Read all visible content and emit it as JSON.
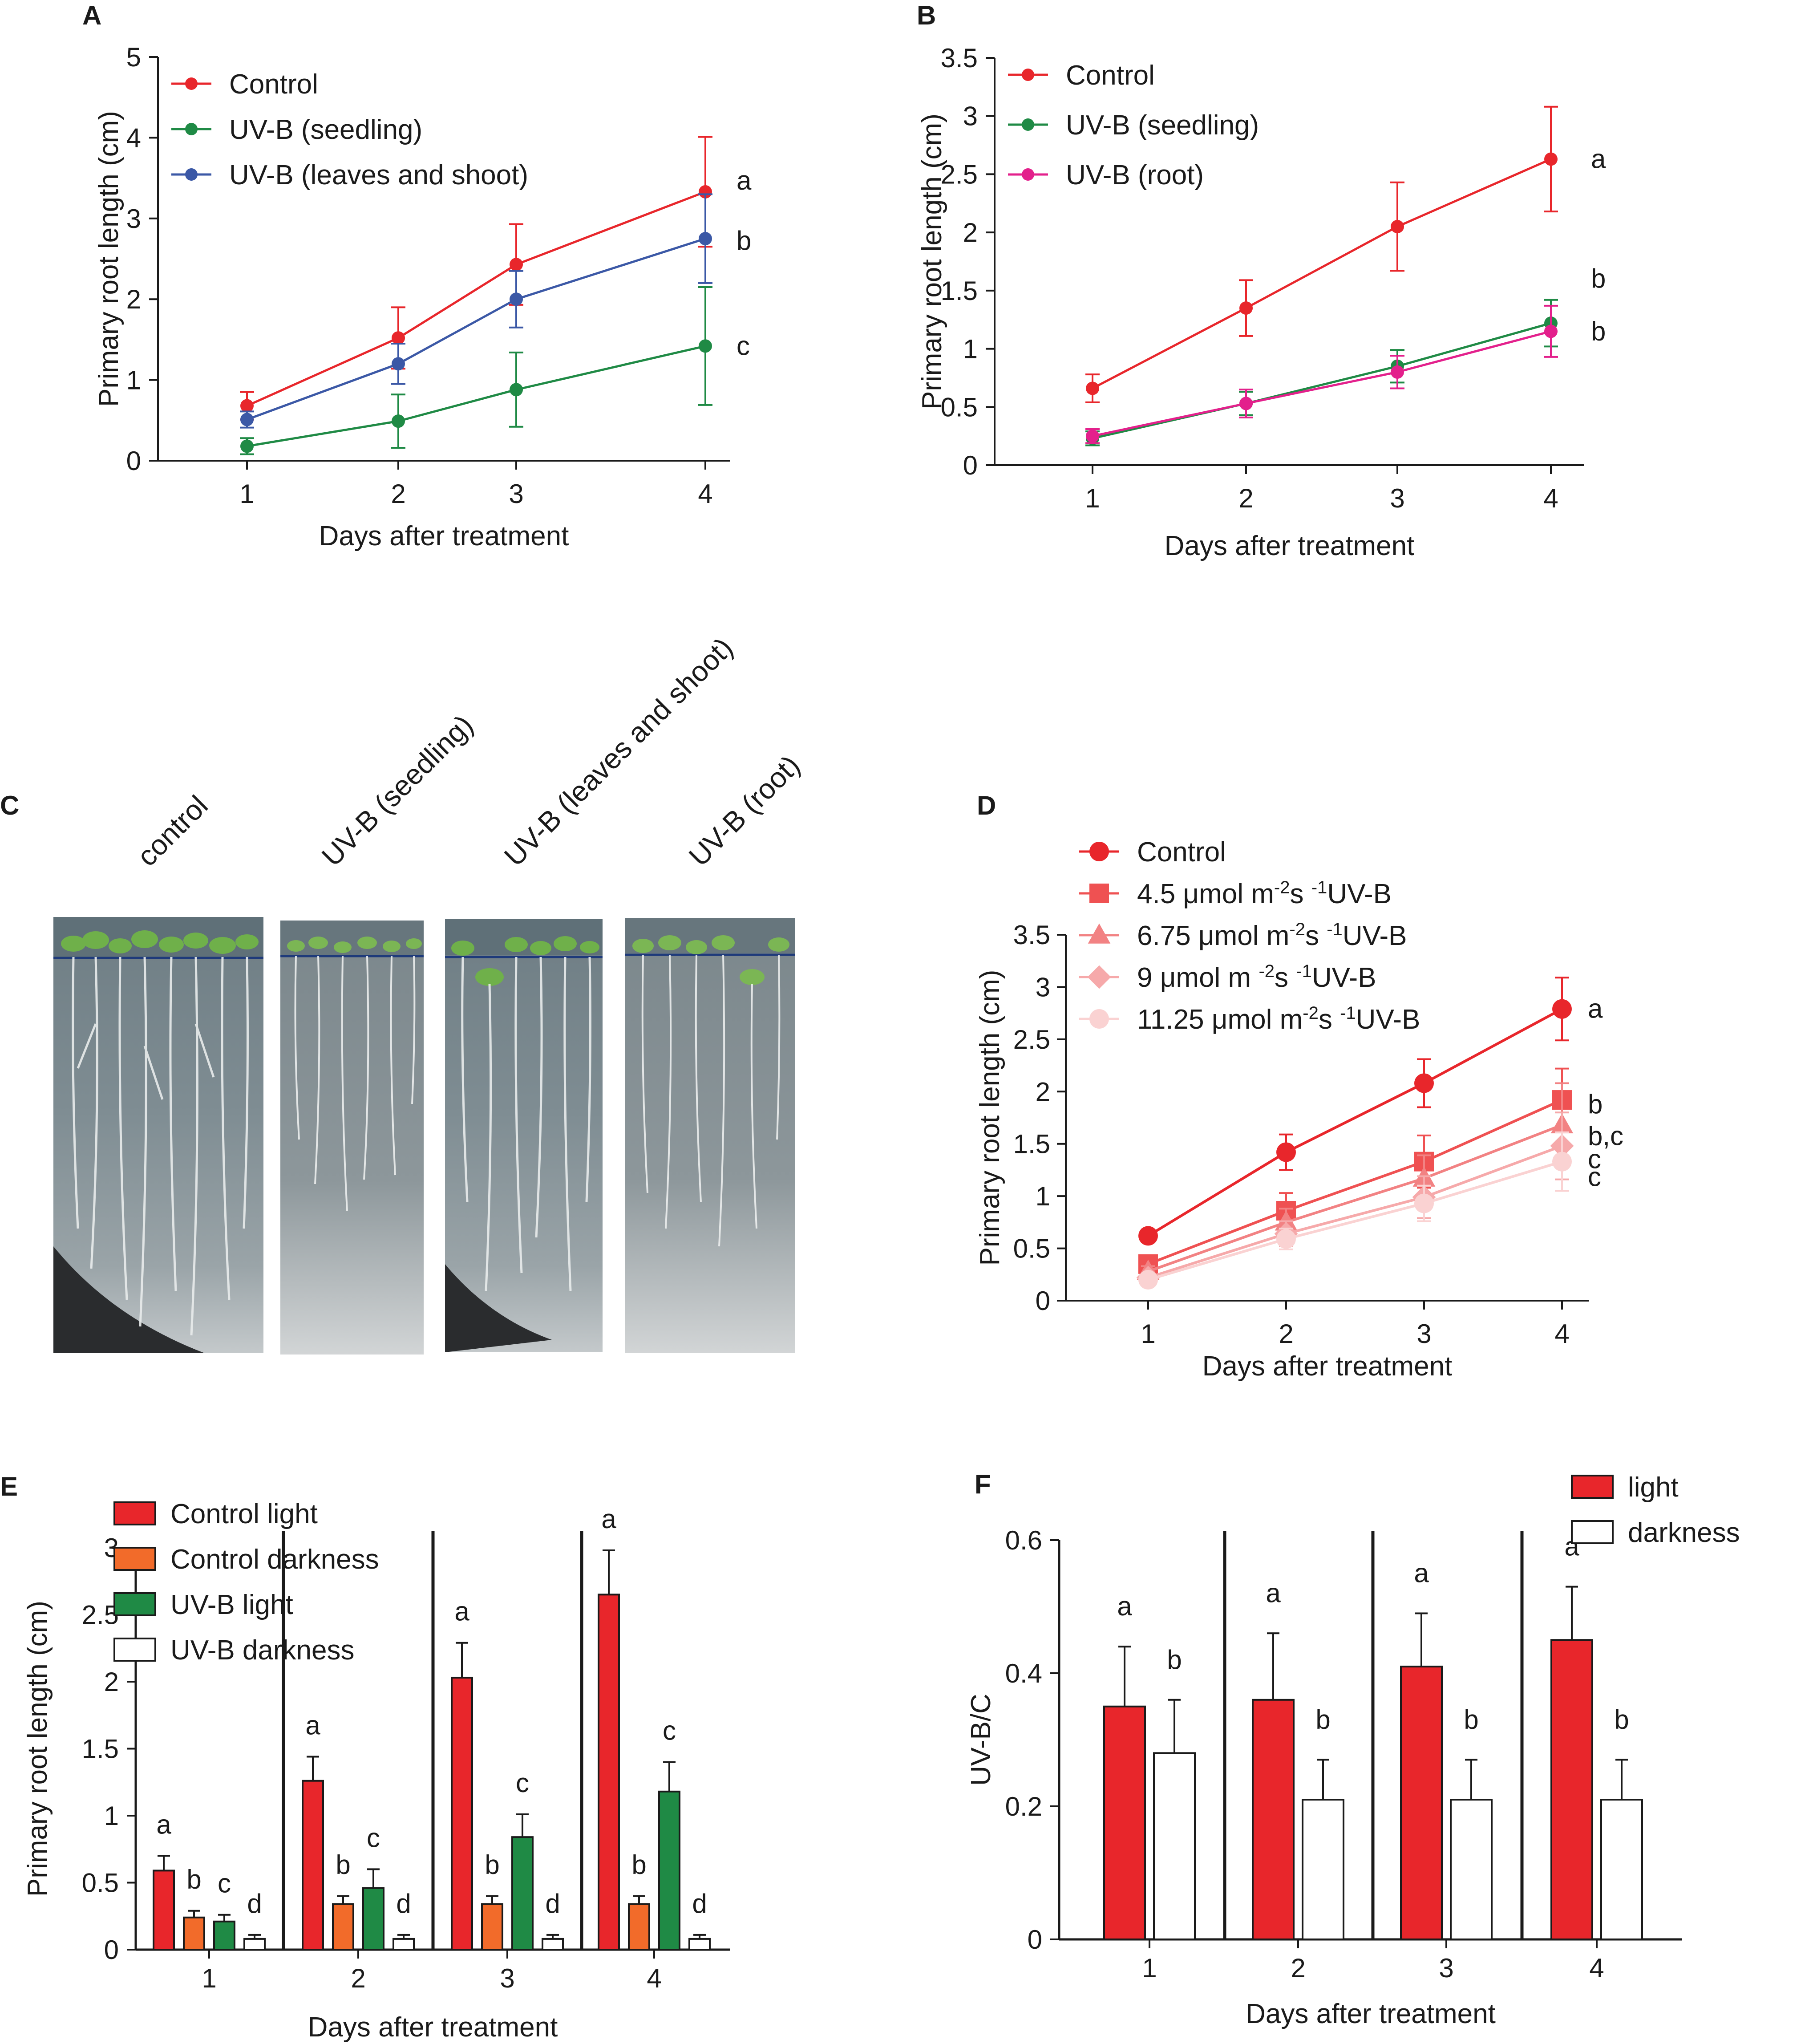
{
  "figure": {
    "panels": {
      "A": {
        "label": "A"
      },
      "B": {
        "label": "B"
      },
      "C": {
        "label": "C"
      },
      "D": {
        "label": "D"
      },
      "E": {
        "label": "E"
      },
      "F": {
        "label": "F"
      }
    }
  },
  "photo": {
    "captions": [
      "control",
      "UV-B (seedling)",
      "UV-B (leaves and shoot)",
      "UV-B (root)"
    ]
  },
  "chart_data": [
    {
      "id": "A",
      "type": "line",
      "xlabel": "Days after treatment",
      "ylabel": "Primary root length (cm)",
      "x": [
        1,
        2,
        3,
        4
      ],
      "ylim": [
        0,
        5
      ],
      "yticks": [
        "0",
        "1",
        "2",
        "3",
        "4",
        "5"
      ],
      "xticks": [
        "1",
        "2",
        "3",
        "4"
      ],
      "legend_position": "top-left",
      "series": [
        {
          "name": "Control",
          "color": "#e8262b",
          "values": [
            0.68,
            1.52,
            2.43,
            3.33
          ],
          "err": [
            0.17,
            0.38,
            0.5,
            0.68
          ],
          "letter": "a"
        },
        {
          "name": "UV-B (seedling)",
          "color": "#1f8a45",
          "values": [
            0.18,
            0.49,
            0.88,
            1.42
          ],
          "err": [
            0.1,
            0.33,
            0.46,
            0.73
          ],
          "letter": "c"
        },
        {
          "name": "UV-B (leaves and shoot)",
          "color": "#3b58a6",
          "values": [
            0.51,
            1.2,
            2.0,
            2.75
          ],
          "err": [
            0.1,
            0.25,
            0.35,
            0.55
          ],
          "letter": "b"
        }
      ]
    },
    {
      "id": "B",
      "type": "line",
      "xlabel": "Days after treatment",
      "ylabel": "Primary root length (cm)",
      "x": [
        1,
        2,
        3,
        4
      ],
      "ylim": [
        0,
        3.5
      ],
      "yticks": [
        "0",
        "0.5",
        "1",
        "1.5",
        "2",
        "2.5",
        "3",
        "3.5"
      ],
      "xticks": [
        "1",
        "2",
        "3",
        "4"
      ],
      "legend_position": "top-left",
      "series": [
        {
          "name": "Control",
          "color": "#e8262b",
          "values": [
            0.66,
            1.35,
            2.05,
            2.63
          ],
          "err": [
            0.12,
            0.24,
            0.38,
            0.45
          ],
          "letter": "a"
        },
        {
          "name": "UV-B (seedling)",
          "color": "#1f8a45",
          "values": [
            0.23,
            0.53,
            0.85,
            1.22
          ],
          "err": [
            0.06,
            0.1,
            0.14,
            0.2
          ],
          "letter": "b"
        },
        {
          "name": "UV-B (root)",
          "color": "#e3208c",
          "values": [
            0.25,
            0.53,
            0.8,
            1.15
          ],
          "err": [
            0.06,
            0.12,
            0.14,
            0.22
          ],
          "letter": "b"
        }
      ]
    },
    {
      "id": "D",
      "type": "line",
      "xlabel": "Days after treatment",
      "ylabel": "Primary root length (cm)",
      "x": [
        1,
        2,
        3,
        4
      ],
      "ylim": [
        0,
        3.5
      ],
      "yticks": [
        "0",
        "0.5",
        "1",
        "1.5",
        "2",
        "2.5",
        "3",
        "3.5"
      ],
      "xticks": [
        "1",
        "2",
        "3",
        "4"
      ],
      "legend_position": "top-left",
      "series": [
        {
          "name": "Control",
          "marker": "circle",
          "color": "#e8262b",
          "values": [
            0.62,
            1.42,
            2.08,
            2.79
          ],
          "err": [
            0.06,
            0.17,
            0.23,
            0.3
          ],
          "letter": "a"
        },
        {
          "name": "4.5 μmol m-2s-1UV-B",
          "legend_parts": [
            "4.5 μmol m",
            "-2",
            "s ",
            "-1",
            "UV-B"
          ],
          "marker": "square",
          "color": "#ef5152",
          "values": [
            0.35,
            0.86,
            1.33,
            1.92
          ],
          "err": [
            0.05,
            0.17,
            0.25,
            0.3
          ],
          "letter": "b"
        },
        {
          "name": "6.75 μmol m-2s-1UV-B",
          "legend_parts": [
            "6.75 μmol m",
            "-2",
            "s ",
            "-1",
            "UV-B"
          ],
          "marker": "triangle",
          "color": "#f28283",
          "values": [
            0.28,
            0.75,
            1.17,
            1.68
          ],
          "err": [
            0.05,
            0.13,
            0.22,
            0.4
          ],
          "letter": "b,c"
        },
        {
          "name": "9 μmol m-2s-1UV-B",
          "legend_parts": [
            "9 μmol m ",
            "-2",
            "s ",
            "-1",
            "UV-B"
          ],
          "marker": "diamond",
          "color": "#f6a9aa",
          "values": [
            0.22,
            0.64,
            0.99,
            1.48
          ],
          "err": [
            0.04,
            0.12,
            0.2,
            0.32
          ],
          "letter": "c"
        },
        {
          "name": "11.25 μmol m-2s-1UV-B",
          "legend_parts": [
            "11.25 μmol m",
            "-2",
            "s ",
            "-1",
            "UV-B"
          ],
          "marker": "circle",
          "color": "#fad2d2",
          "values": [
            0.2,
            0.59,
            0.93,
            1.33
          ],
          "err": [
            0.04,
            0.1,
            0.17,
            0.28
          ],
          "letter": "c"
        }
      ]
    },
    {
      "id": "E",
      "type": "bar",
      "xlabel": "Days after treatment",
      "ylabel": "Primary root length (cm)",
      "categories": [
        "1",
        "2",
        "3",
        "4"
      ],
      "ylim": [
        0,
        3
      ],
      "yticks": [
        "0",
        "0.5",
        "1",
        "1.5",
        "2",
        "2.5",
        "3"
      ],
      "legend_position": "top-left",
      "series": [
        {
          "name": "Control light",
          "color": "#e8262b",
          "values": [
            0.59,
            1.26,
            2.03,
            2.65
          ],
          "err": [
            0.11,
            0.18,
            0.26,
            0.33
          ],
          "letters": [
            "a",
            "a",
            "a",
            "a"
          ]
        },
        {
          "name": "Control darkness",
          "color": "#f26b2a",
          "values": [
            0.24,
            0.34,
            0.34,
            0.34
          ],
          "err": [
            0.05,
            0.06,
            0.06,
            0.06
          ],
          "letters": [
            "b",
            "b",
            "b",
            "b"
          ]
        },
        {
          "name": "UV-B light",
          "color": "#1f8a45",
          "values": [
            0.21,
            0.46,
            0.84,
            1.18
          ],
          "err": [
            0.05,
            0.14,
            0.17,
            0.22
          ],
          "letters": [
            "c",
            "c",
            "c",
            "c"
          ]
        },
        {
          "name": "UV-B darkness",
          "color": "#ffffff",
          "values": [
            0.08,
            0.08,
            0.08,
            0.08
          ],
          "err": [
            0.03,
            0.03,
            0.03,
            0.03
          ],
          "letters": [
            "d",
            "d",
            "d",
            "d"
          ]
        }
      ]
    },
    {
      "id": "F",
      "type": "bar",
      "xlabel": "Days after treatment",
      "ylabel": "UV-B/C",
      "categories": [
        "1",
        "2",
        "3",
        "4"
      ],
      "ylim": [
        0,
        0.6
      ],
      "yticks": [
        "0",
        "0.2",
        "0.4",
        "0.6"
      ],
      "legend_position": "top-right",
      "series": [
        {
          "name": "light",
          "color": "#e8262b",
          "values": [
            0.35,
            0.36,
            0.41,
            0.45
          ],
          "err": [
            0.09,
            0.1,
            0.08,
            0.08
          ],
          "letters": [
            "a",
            "a",
            "a",
            "a"
          ]
        },
        {
          "name": "darkness",
          "color": "#ffffff",
          "values": [
            0.28,
            0.21,
            0.21,
            0.21
          ],
          "err": [
            0.08,
            0.06,
            0.06,
            0.06
          ],
          "letters": [
            "b",
            "b",
            "b",
            "b"
          ]
        }
      ]
    }
  ]
}
